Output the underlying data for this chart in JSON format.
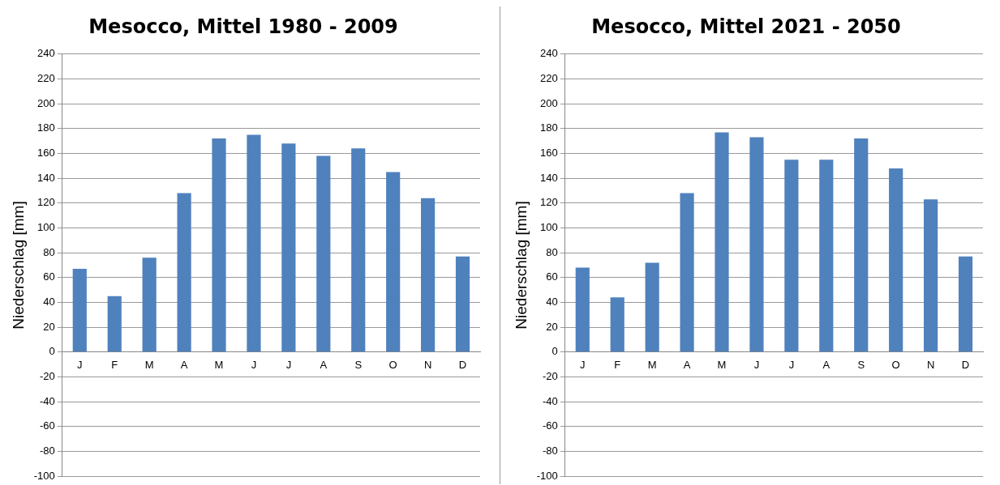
{
  "chart_data": [
    {
      "type": "bar",
      "title": "Mesocco, Mittel 1980 - 2009",
      "ylabel": "Niederschlag [mm]",
      "categories": [
        "J",
        "F",
        "M",
        "A",
        "M",
        "J",
        "J",
        "A",
        "S",
        "O",
        "N",
        "D"
      ],
      "values": [
        67,
        45,
        76,
        128,
        172,
        175,
        168,
        158,
        164,
        145,
        124,
        77
      ],
      "color": "#4f81bd",
      "ylim": [
        -100,
        240
      ],
      "yticks": [
        -100,
        -80,
        -60,
        -40,
        -20,
        0,
        20,
        40,
        60,
        80,
        100,
        120,
        140,
        160,
        180,
        200,
        220,
        240
      ],
      "grid": "y"
    },
    {
      "type": "bar",
      "title": "Mesocco, Mittel 2021 - 2050",
      "ylabel": "Niederschlag [mm]",
      "categories": [
        "J",
        "F",
        "M",
        "A",
        "M",
        "J",
        "J",
        "A",
        "S",
        "O",
        "N",
        "D"
      ],
      "values": [
        68,
        44,
        72,
        128,
        177,
        173,
        155,
        155,
        172,
        148,
        123,
        77
      ],
      "color": "#4f81bd",
      "ylim": [
        -100,
        240
      ],
      "yticks": [
        -100,
        -80,
        -60,
        -40,
        -20,
        0,
        20,
        40,
        60,
        80,
        100,
        120,
        140,
        160,
        180,
        200,
        220,
        240
      ],
      "grid": "y"
    }
  ]
}
